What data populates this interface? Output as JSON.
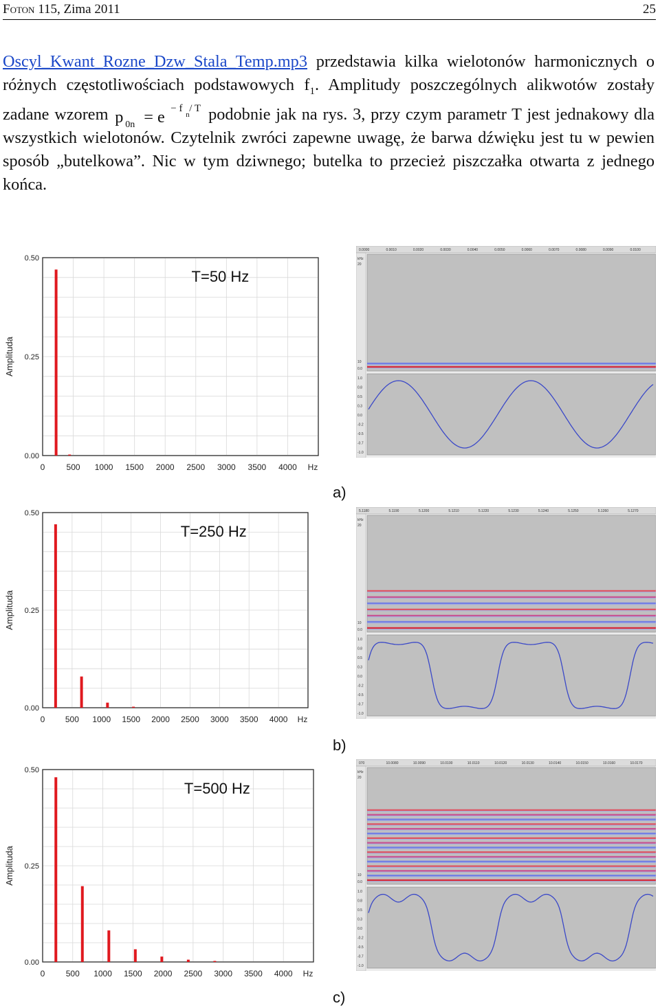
{
  "header": {
    "journal_small": "Foton",
    "journal_rest": " 115, Zima 2011",
    "page_number": "25"
  },
  "paragraph": {
    "link_text": "Oscyl_Kwant_Rozne_Dzw_Stala_Temp.mp3",
    "text_1": " przedstawia kilka wielotonów harmonicznych o różnych częstotliwościach podstawowych f",
    "sub_1": "1",
    "text_2": ". Amplitudy poszczególnych alikwotów zostały zadane wzorem ",
    "formula_p": "p",
    "formula_sub": "0n",
    "formula_eq": "= e",
    "formula_exp": "− f",
    "formula_exp_sub": "n",
    "formula_exp_rest": " / T",
    "text_3": " podobnie jak na rys. 3, przy czym parametr T jest jednakowy dla wszystkich wielotonów. Czytelnik zwróci zapewne uwagę, że barwa dźwięku jest tu w pewien sposób „butelkowa”. Nic w tym dziwnego; butelka to przecież piszczałka otwarta z jednego końca."
  },
  "chart_data": [
    {
      "type": "bar",
      "title": "T=50 Hz",
      "xlabel": "Hz",
      "ylabel": "Amplituda",
      "xlim": [
        0,
        4500
      ],
      "ylim": [
        0,
        0.5
      ],
      "xticks": [
        "0",
        "500",
        "1000",
        "1500",
        "2000",
        "2500",
        "3000",
        "3500",
        "4000"
      ],
      "yticks": [
        "0.00",
        "0.25",
        "0.50"
      ],
      "x": [
        220,
        440
      ],
      "values": [
        0.47,
        0.002
      ],
      "caption": "a)"
    },
    {
      "type": "bar",
      "title": "T=250 Hz",
      "xlabel": "Hz",
      "ylabel": "Amplituda",
      "xlim": [
        0,
        4500
      ],
      "ylim": [
        0,
        0.5
      ],
      "xticks": [
        "0",
        "500",
        "1000",
        "1500",
        "2000",
        "2500",
        "3000",
        "3500",
        "4000"
      ],
      "yticks": [
        "0.00",
        "0.25",
        "0.50"
      ],
      "x": [
        220,
        660,
        1100,
        1540
      ],
      "values": [
        0.47,
        0.08,
        0.013,
        0.002
      ],
      "caption": "b)"
    },
    {
      "type": "bar",
      "title": "T=500 Hz",
      "xlabel": "Hz",
      "ylabel": "Amplituda",
      "xlim": [
        0,
        4500
      ],
      "ylim": [
        0,
        0.5
      ],
      "xticks": [
        "0",
        "500",
        "1000",
        "1500",
        "2000",
        "2500",
        "3000",
        "3500",
        "4000"
      ],
      "yticks": [
        "0.00",
        "0.25",
        "0.50"
      ],
      "x": [
        220,
        660,
        1100,
        1540,
        1980,
        2420,
        2860
      ],
      "values": [
        0.48,
        0.197,
        0.082,
        0.033,
        0.014,
        0.006,
        0.002
      ],
      "caption": "c)"
    }
  ],
  "screenshots": [
    {
      "time_ticks": [
        "0.0000",
        "0.0010",
        "0.0020",
        "0.0030",
        "0.0040",
        "0.0050",
        "0.0060",
        "0.0070",
        "0.0080",
        "0.0090",
        "0.0100"
      ],
      "spec_ticks": [
        "kHz",
        "20",
        "10",
        "0.0"
      ],
      "wave_ticks": [
        "1.0",
        "0.8",
        "0.5",
        "0.3",
        "0.0",
        "-0.2",
        "-0.5",
        "-0.7",
        "-1.0"
      ],
      "line_count": 2,
      "waveform": "sine"
    },
    {
      "time_ticks": [
        "5.1180",
        "5.1190",
        "5.1200",
        "5.1210",
        "5.1220",
        "5.1230",
        "5.1240",
        "5.1250",
        "5.1260",
        "5.1270"
      ],
      "spec_ticks": [
        "kHz",
        "20",
        "10",
        "0.0"
      ],
      "wave_ticks": [
        "1.0",
        "0.8",
        "0.5",
        "0.3",
        "0.0",
        "-0.2",
        "-0.5",
        "-0.7",
        "-1.0"
      ],
      "line_count": 7,
      "waveform": "flat"
    },
    {
      "time_ticks": [
        "070",
        "10.0080",
        "10.0090",
        "10.0100",
        "10.0110",
        "10.0120",
        "10.0130",
        "10.0140",
        "10.0150",
        "10.0160",
        "10.0170"
      ],
      "spec_ticks": [
        "kHz",
        "20",
        "10",
        "0.0"
      ],
      "wave_ticks": [
        "1.0",
        "0.8",
        "0.5",
        "0.3",
        "0.0",
        "-0.2",
        "-0.5",
        "-0.7",
        "-1.0"
      ],
      "line_count": 16,
      "waveform": "flat-dip"
    }
  ],
  "colors": {
    "bar": "#e0191f",
    "link": "#1a47c8",
    "wave": "#3a48c8",
    "panel": "#c0c0c0",
    "ruler": "#dcdcdc"
  }
}
